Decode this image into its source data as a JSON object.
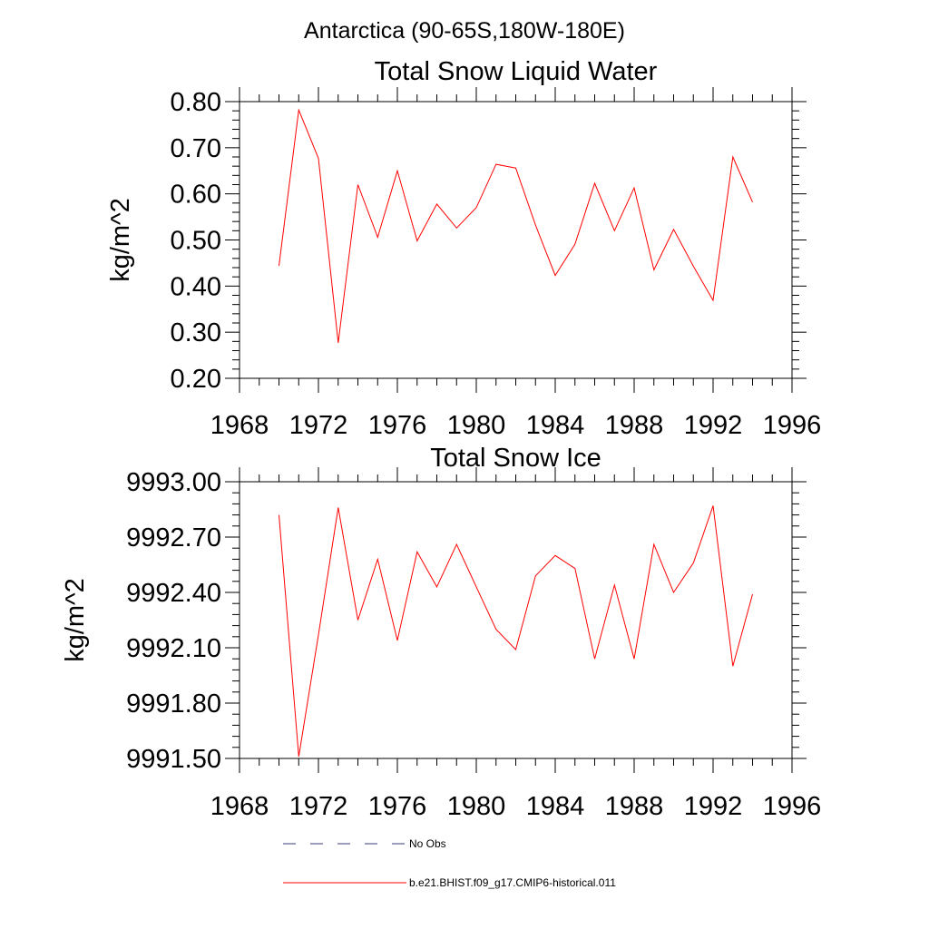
{
  "header": {
    "region_title": "Antarctica (90-65S,180W-180E)"
  },
  "chart_data": [
    {
      "type": "line",
      "title": "Total Snow Liquid Water",
      "xlabel": "",
      "ylabel": "kg/m^2",
      "xlim": [
        1968,
        1996
      ],
      "ylim": [
        0.2,
        0.8
      ],
      "x_ticks": [
        1968,
        1972,
        1976,
        1980,
        1984,
        1988,
        1992,
        1996
      ],
      "x_tick_labels": [
        "1968",
        "1972",
        "1976",
        "1980",
        "1984",
        "1988",
        "1992",
        "1996"
      ],
      "y_ticks": [
        0.2,
        0.3,
        0.4,
        0.5,
        0.6,
        0.7,
        0.8
      ],
      "y_tick_labels": [
        "0.20",
        "0.30",
        "0.40",
        "0.50",
        "0.60",
        "0.70",
        "0.80"
      ],
      "grid": false,
      "x": [
        1970,
        1971,
        1972,
        1973,
        1974,
        1975,
        1976,
        1977,
        1978,
        1979,
        1980,
        1981,
        1982,
        1983,
        1984,
        1985,
        1986,
        1987,
        1988,
        1989,
        1990,
        1991,
        1992,
        1993,
        1994
      ],
      "series": [
        {
          "color": "#ff0000",
          "values": [
            0.444,
            0.782,
            0.677,
            0.277,
            0.62,
            0.506,
            0.65,
            0.498,
            0.578,
            0.526,
            0.57,
            0.664,
            0.656,
            0.532,
            0.423,
            0.491,
            0.623,
            0.52,
            0.613,
            0.435,
            0.523,
            0.443,
            0.369,
            0.68,
            0.582
          ]
        }
      ]
    },
    {
      "type": "line",
      "title": "Total Snow Ice",
      "xlabel": "",
      "ylabel": "kg/m^2",
      "xlim": [
        1968,
        1996
      ],
      "ylim": [
        9991.5,
        9993.0
      ],
      "x_ticks": [
        1968,
        1972,
        1976,
        1980,
        1984,
        1988,
        1992,
        1996
      ],
      "x_tick_labels": [
        "1968",
        "1972",
        "1976",
        "1980",
        "1984",
        "1988",
        "1992",
        "1996"
      ],
      "y_ticks": [
        9991.5,
        9991.8,
        9992.1,
        9992.4,
        9992.7,
        9993.0
      ],
      "y_tick_labels": [
        "9991.50",
        "9991.80",
        "9992.10",
        "9992.40",
        "9992.70",
        "9993.00"
      ],
      "grid": false,
      "x": [
        1970,
        1971,
        1972,
        1973,
        1974,
        1975,
        1976,
        1977,
        1978,
        1979,
        1980,
        1981,
        1982,
        1983,
        1984,
        1985,
        1986,
        1987,
        1988,
        1989,
        1990,
        1991,
        1992,
        1993,
        1994
      ],
      "series": [
        {
          "color": "#ff0000",
          "values": [
            9992.82,
            9991.51,
            9992.17,
            9992.86,
            9992.25,
            9992.58,
            9992.14,
            9992.62,
            9992.43,
            9992.66,
            9992.43,
            9992.2,
            9992.09,
            9992.49,
            9992.6,
            9992.53,
            9992.04,
            9992.44,
            9992.04,
            9992.66,
            9992.4,
            9992.56,
            9992.87,
            9992.0,
            9992.39
          ]
        }
      ]
    }
  ],
  "legend": {
    "placement": "bottom",
    "items": [
      {
        "label": "No Obs",
        "color": "#3b3b7a",
        "style": "dashed"
      },
      {
        "label": "b.e21.BHIST.f09_g17.CMIP6-historical.011",
        "color": "#ff0000",
        "style": "solid"
      }
    ]
  }
}
